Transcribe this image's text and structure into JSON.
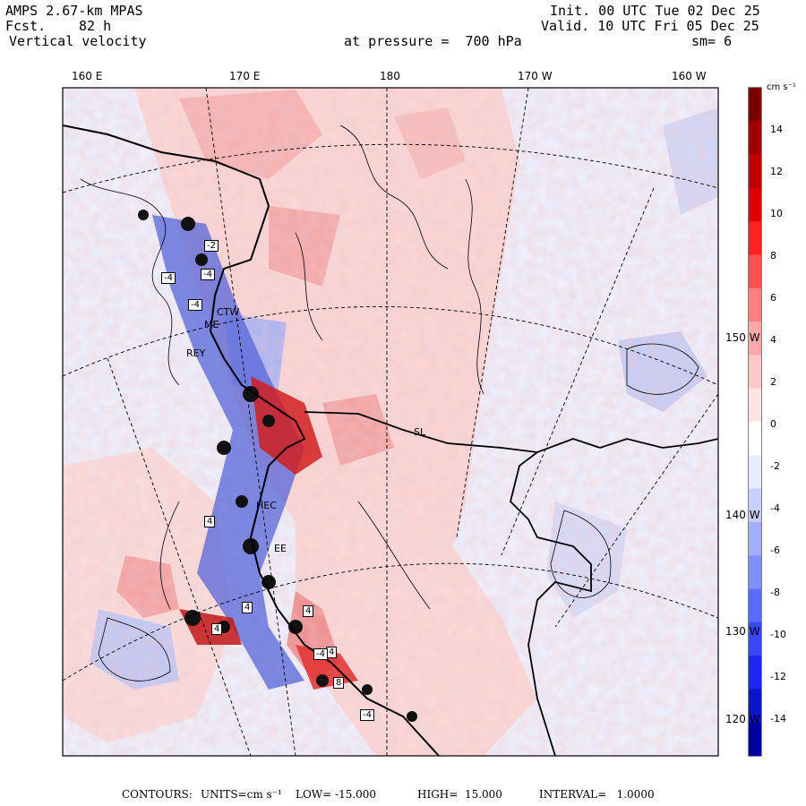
{
  "header": {
    "model": "AMPS 2.67-km MPAS",
    "fcst_label": "Fcst.",
    "fcst_value": "82 h",
    "field": "Vertical velocity",
    "init": "Init. 00 UTC Tue 02 Dec 25",
    "valid": "Valid. 10 UTC Fri 05 Dec 25",
    "pressure": "at pressure =  700 hPa",
    "smoothing": "sm= 6"
  },
  "top_axis": [
    "160 E",
    "170 E",
    "180",
    "170 W",
    "160 W"
  ],
  "right_axis": [
    "150 W",
    "140 W",
    "130 W",
    "120 W"
  ],
  "station_labels": [
    "CTW",
    "ME",
    "REY",
    "SL",
    "EE",
    "HEC"
  ],
  "contour_labels": [
    "-4",
    "-2",
    "-4",
    "-4",
    "-4",
    "4",
    "4",
    "4",
    "4",
    "4",
    "8",
    "-4"
  ],
  "colorbar": {
    "units": "cm s⁻¹",
    "tick_labels": [
      "14",
      "12",
      "10",
      "8",
      "6",
      "4",
      "2",
      "0",
      "-2",
      "-4",
      "-6",
      "-8",
      "-10",
      "-12",
      "-14"
    ],
    "colors": [
      "#7a0000",
      "#a00000",
      "#c00000",
      "#e00000",
      "#ff2020",
      "#ff5050",
      "#ff8080",
      "#ffa8a8",
      "#ffc8c8",
      "#ffe4e4",
      "#ffffff",
      "#e8ecff",
      "#c8d0ff",
      "#a4b0ff",
      "#8090ff",
      "#5a6cff",
      "#3848ff",
      "#1a28f0",
      "#0a16c8",
      "#00009a"
    ]
  },
  "footer": {
    "contours_label": "CONTOURS:",
    "units": "UNITS=cm s⁻¹",
    "low": "LOW= -15.000",
    "high": "HIGH=  15.000",
    "interval": "INTERVAL=   1.0000"
  }
}
